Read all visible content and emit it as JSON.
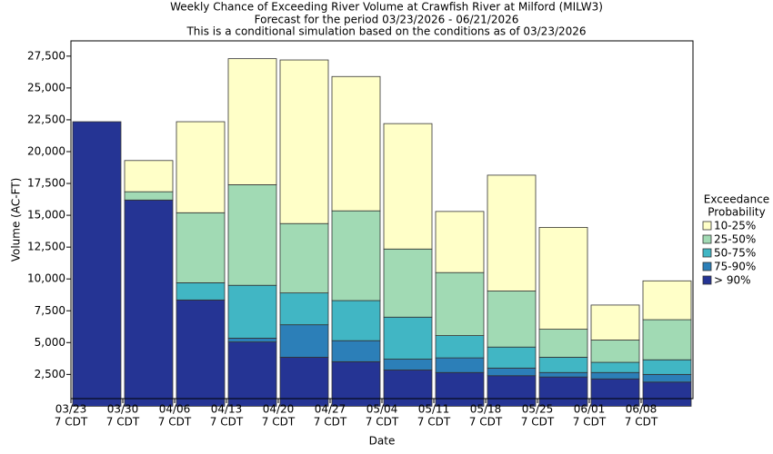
{
  "chart_data": {
    "type": "stacked-bar",
    "title": "Weekly Chance of Exceeding River Volume at Crawfish River at Milford (MILW3)",
    "subtitle": "Forecast for the period 03/23/2026 - 06/21/2026",
    "note": "This is a conditional simulation based on the conditions as of 03/23/2026",
    "x_label": "Date",
    "y_label": "Volume (AC-FT)",
    "legend_title": [
      "Exceedance",
      "Probability"
    ],
    "xticks": [
      "03/23",
      "03/30",
      "04/06",
      "04/13",
      "04/20",
      "04/27",
      "05/04",
      "05/11",
      "05/18",
      "05/25",
      "06/01",
      "06/08"
    ],
    "xtick_sublabel": "7 CDT",
    "ylim": [
      600,
      28700
    ],
    "yticks": [
      {
        "value": 2500,
        "label": "2,500"
      },
      {
        "value": 5000,
        "label": "5,000"
      },
      {
        "value": 7500,
        "label": "7,500"
      },
      {
        "value": 10000,
        "label": "10,000"
      },
      {
        "value": 12500,
        "label": "12,500"
      },
      {
        "value": 15000,
        "label": "15,000"
      },
      {
        "value": 17500,
        "label": "17,500"
      },
      {
        "value": 20000,
        "label": "20,000"
      },
      {
        "value": 22500,
        "label": "22,500"
      },
      {
        "value": 25000,
        "label": "25,000"
      },
      {
        "value": 27500,
        "label": "27,500"
      }
    ],
    "series": [
      {
        "name": "10-25%",
        "color": "#ffffc8",
        "values": [
          0,
          2450,
          7150,
          9900,
          12850,
          10550,
          9850,
          4800,
          9100,
          8000,
          2750,
          3050
        ]
      },
      {
        "name": "25-50%",
        "color": "#a1dab4",
        "values": [
          0,
          650,
          5500,
          7900,
          5450,
          7050,
          5350,
          4950,
          4400,
          2200,
          1750,
          3150
        ]
      },
      {
        "name": "50-75%",
        "color": "#41b6c4",
        "values": [
          0,
          0,
          1350,
          4150,
          2500,
          3150,
          3300,
          1750,
          1650,
          1200,
          800,
          1150
        ]
      },
      {
        "name": "75-90%",
        "color": "#2c7fb8",
        "values": [
          0,
          0,
          0,
          300,
          2550,
          1650,
          850,
          1150,
          600,
          350,
          500,
          600
        ]
      },
      {
        "name": "> 90%",
        "color": "#253494",
        "values": [
          22350,
          16200,
          8350,
          5050,
          3850,
          3500,
          2850,
          2650,
          2400,
          2300,
          2150,
          1900
        ]
      }
    ]
  }
}
